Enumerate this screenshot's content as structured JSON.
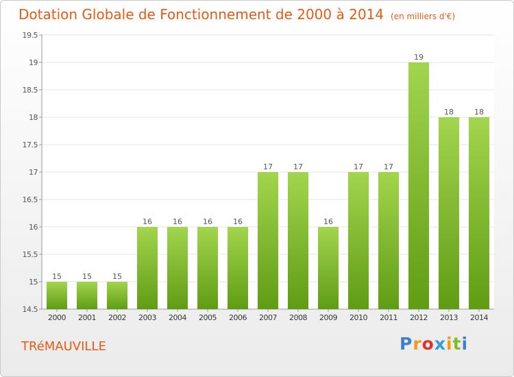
{
  "title": "Dotation Globale de Fonctionnement de 2000 à 2014",
  "unit": "(en milliers d'€)",
  "commune": "TRéMAUVILLE",
  "logo_text": "Proxiti",
  "colors": {
    "title": "#e85a14",
    "bar_top": "#a3d54e",
    "bar_bottom": "#5f9c14",
    "grid": "#e4e4e4"
  },
  "chart_data": {
    "type": "bar",
    "categories": [
      "2000",
      "2001",
      "2002",
      "2003",
      "2004",
      "2005",
      "2006",
      "2007",
      "2008",
      "2009",
      "2010",
      "2011",
      "2012",
      "2013",
      "2014"
    ],
    "values": [
      15,
      15,
      15,
      16,
      16,
      16,
      16,
      17,
      17,
      16,
      17,
      17,
      19,
      18,
      18
    ],
    "ylim": [
      14.5,
      19.5
    ],
    "yticks": [
      "14.5",
      "15",
      "15.5",
      "16",
      "16.5",
      "17",
      "17.5",
      "18",
      "18.5",
      "19",
      "19.5"
    ],
    "grid": true,
    "data_labels": true
  }
}
